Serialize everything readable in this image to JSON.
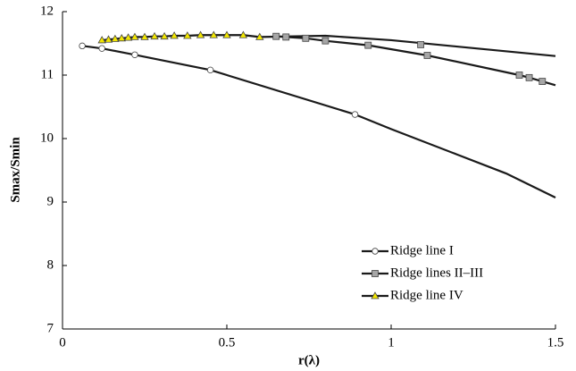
{
  "chart_data": {
    "type": "line",
    "xlabel": "r(λ)",
    "ylabel": "Smax/Smin",
    "xlim": [
      0,
      1.5
    ],
    "ylim": [
      7,
      12
    ],
    "xticks": [
      0,
      0.5,
      1,
      1.5
    ],
    "yticks": [
      7,
      8,
      9,
      10,
      11,
      12
    ],
    "grid": false,
    "legend": "lower right",
    "series": [
      {
        "name": "Ridge line I",
        "color": "#1a1a1a",
        "marker": "circle",
        "marker_fill": "#ffffff",
        "x": [
          0.06,
          0.12,
          0.22,
          0.45,
          0.89
        ],
        "values": [
          11.46,
          11.42,
          11.32,
          11.08,
          10.38
        ],
        "tail_x": [
          1.0,
          1.2,
          1.35,
          1.5
        ],
        "tail_values": [
          10.15,
          9.75,
          9.45,
          9.07
        ]
      },
      {
        "name": "Ridge lines II–III",
        "color": "#1a1a1a",
        "marker": "square",
        "marker_fill": "#a6a6a6",
        "x": [
          0.65,
          0.68,
          0.74,
          0.8,
          0.93,
          1.11,
          1.39,
          1.42,
          1.46,
          null,
          1.09
        ],
        "values": [
          11.61,
          11.6,
          11.58,
          11.54,
          11.47,
          11.31,
          11.0,
          10.96,
          10.9,
          null,
          11.48
        ],
        "tail_x": [
          1.5
        ],
        "tail_values": [
          10.84
        ]
      },
      {
        "name": "Ridge line IV",
        "color": "#1a1a1a",
        "marker": "triangle",
        "marker_fill": "#f2e600",
        "x": [
          0.12,
          0.14,
          0.16,
          0.18,
          0.2,
          0.22,
          0.25,
          0.28,
          0.31,
          0.34,
          0.38,
          0.42,
          0.46,
          0.5,
          0.55,
          0.6
        ],
        "values": [
          11.55,
          11.56,
          11.57,
          11.58,
          11.59,
          11.6,
          11.6,
          11.61,
          11.61,
          11.62,
          11.62,
          11.63,
          11.63,
          11.63,
          11.63,
          11.6
        ],
        "tail_x": [
          0.8,
          1.0,
          1.2,
          1.5
        ],
        "tail_values": [
          11.62,
          11.55,
          11.45,
          11.3
        ]
      }
    ]
  }
}
